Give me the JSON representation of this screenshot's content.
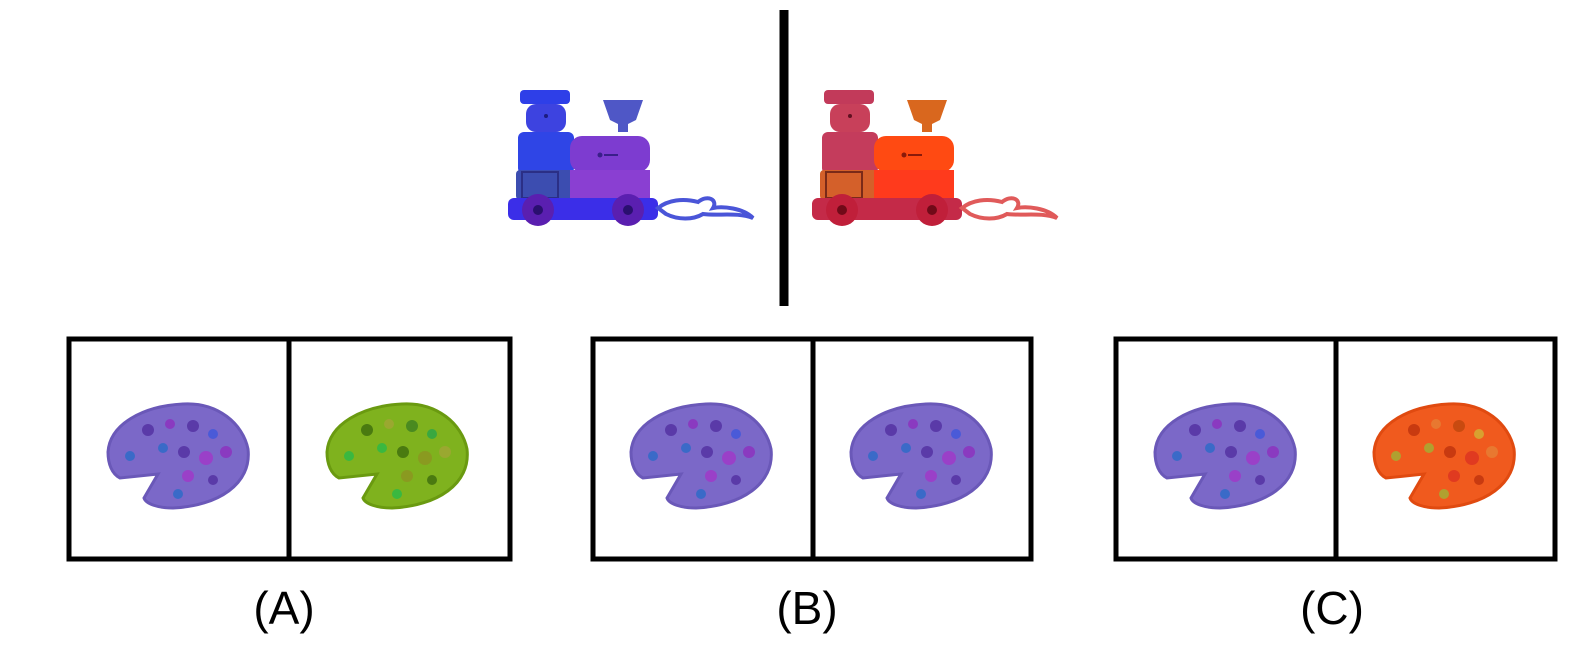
{
  "example": {
    "left_item": {
      "icon": "toy-train-icon",
      "color": "#3a3aee"
    },
    "right_item": {
      "icon": "toy-train-icon",
      "color": "#e43a3a"
    }
  },
  "options": [
    {
      "label": "(A)",
      "left": {
        "icon": "pizza-icon",
        "color": "#7b68c8"
      },
      "right": {
        "icon": "pizza-icon",
        "color": "#7fb21e"
      }
    },
    {
      "label": "(B)",
      "left": {
        "icon": "pizza-icon",
        "color": "#7b68c8"
      },
      "right": {
        "icon": "pizza-icon",
        "color": "#7b68c8"
      }
    },
    {
      "label": "(C)",
      "left": {
        "icon": "pizza-icon",
        "color": "#7b68c8"
      },
      "right": {
        "icon": "pizza-icon",
        "color": "#f05a1e"
      }
    }
  ]
}
